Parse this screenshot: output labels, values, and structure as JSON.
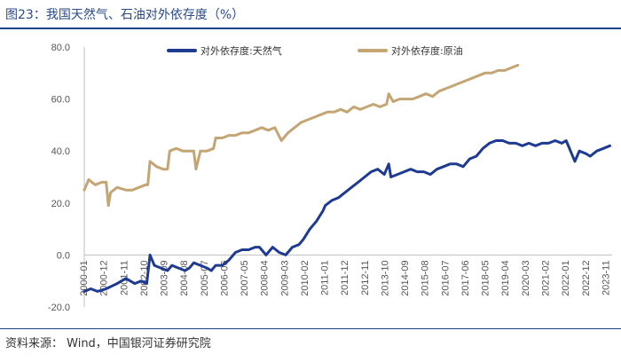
{
  "figure": {
    "title": "图23：我国天然气、石油对外依存度（%）",
    "source": "资料来源： Wind，中国银河证券研究院"
  },
  "chart_data": {
    "type": "line",
    "title": "我国天然气、石油对外依存度（%）",
    "xlabel": "",
    "ylabel": "",
    "ylim": [
      -20,
      80
    ],
    "yticks": [
      -20,
      0,
      20,
      40,
      60,
      80
    ],
    "ytick_labels": [
      "-20.0",
      "0.0",
      "20.0",
      "40.0",
      "60.0",
      "80.0"
    ],
    "x_range": [
      2000.0,
      2024.1
    ],
    "xtick_labels": [
      "2000-01",
      "2000-12",
      "2001-11",
      "2002-10",
      "2003-09",
      "2004-08",
      "2005-07",
      "2006-06",
      "2007-05",
      "2008-04",
      "2009-03",
      "2010-02",
      "2011-01",
      "2011-12",
      "2012-11",
      "2013-10",
      "2014-09",
      "2015-08",
      "2016-07",
      "2017-06",
      "2018-05",
      "2019-04",
      "2020-03",
      "2021-02",
      "2022-01",
      "2022-12",
      "2023-11"
    ],
    "legend_position": "top",
    "colors": {
      "gas": "#1f3a93",
      "oil": "#c4a574",
      "axis": "#bfbfbf",
      "text": "#555555"
    },
    "series": [
      {
        "name": "对外依存度:天然气",
        "key": "gas",
        "x": [
          2000.0,
          2000.3,
          2000.6,
          2001.0,
          2001.5,
          2001.9,
          2002.3,
          2002.6,
          2002.85,
          2003.0,
          2003.2,
          2003.5,
          2003.8,
          2004.0,
          2004.3,
          2004.6,
          2004.8,
          2005.0,
          2005.3,
          2005.6,
          2005.8,
          2006.0,
          2006.3,
          2006.6,
          2006.9,
          2007.2,
          2007.5,
          2007.8,
          2008.0,
          2008.3,
          2008.6,
          2008.9,
          2009.2,
          2009.5,
          2009.8,
          2010.0,
          2010.3,
          2010.6,
          2010.9,
          2011.0,
          2011.3,
          2011.6,
          2011.9,
          2012.2,
          2012.5,
          2012.8,
          2013.1,
          2013.4,
          2013.7,
          2013.9,
          2014.0,
          2014.3,
          2014.6,
          2014.9,
          2015.2,
          2015.5,
          2015.8,
          2016.1,
          2016.4,
          2016.7,
          2017.0,
          2017.3,
          2017.6,
          2017.9,
          2018.2,
          2018.5,
          2018.8,
          2019.1,
          2019.4,
          2019.7,
          2020.0,
          2020.3,
          2020.6,
          2020.9,
          2021.2,
          2021.5,
          2021.8,
          2022.0,
          2022.2,
          2022.4,
          2022.6,
          2022.9,
          2023.1,
          2023.4,
          2023.7,
          2024.0
        ],
        "values": [
          -14,
          -13,
          -14,
          -13,
          -11,
          -9,
          -11,
          -10,
          -11,
          0,
          -4,
          -5,
          -6,
          -4,
          -5,
          -6,
          -5,
          -3,
          -4,
          -5,
          -6,
          -4,
          -4,
          -2,
          1,
          2,
          2,
          3,
          3,
          0,
          3,
          1,
          0,
          3,
          4,
          6,
          10,
          13,
          17,
          19,
          21,
          22,
          24,
          26,
          28,
          30,
          32,
          33,
          31,
          35,
          30,
          31,
          32,
          33,
          32,
          32,
          31,
          33,
          34,
          35,
          35,
          34,
          37,
          38,
          41,
          43,
          44,
          44,
          43,
          43,
          42,
          43,
          42,
          43,
          43,
          44,
          43,
          44,
          40,
          36,
          40,
          39,
          38,
          40,
          41,
          42
        ]
      },
      {
        "name": "对外依存度:原油",
        "key": "oil",
        "x": [
          2000.0,
          2000.2,
          2000.5,
          2000.8,
          2001.0,
          2001.1,
          2001.2,
          2001.5,
          2001.9,
          2002.2,
          2002.5,
          2002.8,
          2002.9,
          2003.0,
          2003.3,
          2003.6,
          2003.8,
          2003.9,
          2004.2,
          2004.5,
          2004.8,
          2005.0,
          2005.1,
          2005.3,
          2005.6,
          2005.9,
          2006.0,
          2006.3,
          2006.6,
          2006.9,
          2007.2,
          2007.5,
          2007.8,
          2008.1,
          2008.4,
          2008.7,
          2009.0,
          2009.3,
          2009.6,
          2009.9,
          2010.2,
          2010.5,
          2010.8,
          2011.1,
          2011.4,
          2011.7,
          2012.0,
          2012.3,
          2012.6,
          2012.9,
          2013.2,
          2013.5,
          2013.8,
          2013.9,
          2014.1,
          2014.4,
          2014.7,
          2015.0,
          2015.3,
          2015.6,
          2015.9,
          2016.2,
          2016.5,
          2016.8,
          2017.1,
          2017.4,
          2017.7,
          2018.0,
          2018.3,
          2018.6,
          2018.9,
          2019.2,
          2019.5,
          2019.8
        ],
        "values": [
          25,
          29,
          27,
          28,
          28,
          19,
          24,
          26,
          25,
          25,
          26,
          27,
          27,
          36,
          34,
          33,
          33,
          40,
          41,
          40,
          40,
          40,
          33,
          40,
          40,
          41,
          45,
          45,
          46,
          46,
          47,
          47,
          48,
          49,
          48,
          49,
          44,
          47,
          49,
          51,
          52,
          53,
          54,
          55,
          55,
          56,
          55,
          57,
          56,
          57,
          58,
          57,
          58,
          62,
          59,
          60,
          60,
          60,
          61,
          62,
          61,
          63,
          64,
          65,
          66,
          67,
          68,
          69,
          70,
          70,
          71,
          71,
          72,
          73
        ]
      }
    ]
  }
}
